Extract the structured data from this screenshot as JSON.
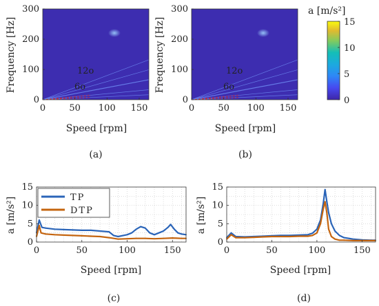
{
  "chart_data": [
    {
      "id": "a",
      "type": "heatmap",
      "panel_label": "(a)",
      "xlabel": "Speed [rpm]",
      "ylabel": "Frequency [Hz]",
      "xlim": [
        0,
        165
      ],
      "ylim": [
        0,
        300
      ],
      "xticks": [
        "0",
        "50",
        "100",
        "150"
      ],
      "yticks": [
        "0",
        "100",
        "200",
        "300"
      ],
      "annotations": [
        "12o",
        "6o"
      ],
      "order_lines": [
        6,
        12,
        24,
        36,
        48
      ],
      "colormap": "parula"
    },
    {
      "id": "b",
      "type": "heatmap",
      "panel_label": "(b)",
      "xlabel": "Speed [rpm]",
      "ylabel": "Frequency [Hz]",
      "xlim": [
        0,
        165
      ],
      "ylim": [
        0,
        300
      ],
      "xticks": [
        "0",
        "50",
        "100",
        "150"
      ],
      "yticks": [
        "0",
        "100",
        "200",
        "300"
      ],
      "annotations": [
        "12o",
        "6o"
      ],
      "order_lines": [
        6,
        12,
        24,
        36,
        48
      ],
      "colormap": "parula"
    },
    {
      "id": "colorbar",
      "type": "colorbar",
      "label": "a [m/s²]",
      "range": [
        0,
        15
      ],
      "ticks": [
        "0",
        "5",
        "10",
        "15"
      ]
    },
    {
      "id": "c",
      "type": "line",
      "panel_label": "(c)",
      "xlabel": "Speed [rpm]",
      "ylabel": "a [m/s²]",
      "xlim": [
        0,
        165
      ],
      "ylim": [
        0,
        15
      ],
      "xticks": [
        "0",
        "50",
        "100",
        "150"
      ],
      "yticks": [
        "0",
        "5",
        "10",
        "15"
      ],
      "grid": true,
      "legend_position": "top-left",
      "series": [
        {
          "name": "TP",
          "color": "#2a64b8",
          "x": [
            0,
            3,
            6,
            10,
            20,
            30,
            40,
            50,
            60,
            70,
            80,
            85,
            90,
            100,
            105,
            110,
            115,
            120,
            125,
            130,
            135,
            140,
            145,
            148,
            152,
            156,
            160,
            165
          ],
          "y": [
            2.5,
            6.0,
            4.0,
            3.8,
            3.5,
            3.4,
            3.3,
            3.2,
            3.2,
            3.0,
            2.8,
            1.8,
            1.5,
            2.0,
            2.5,
            3.5,
            4.2,
            3.8,
            2.5,
            2.0,
            2.5,
            3.0,
            4.0,
            4.8,
            3.5,
            2.5,
            2.2,
            2.0
          ]
        },
        {
          "name": "DTP",
          "color": "#c4640e",
          "x": [
            0,
            3,
            5,
            10,
            20,
            30,
            40,
            50,
            60,
            70,
            80,
            90,
            100,
            110,
            120,
            130,
            140,
            150,
            160,
            165
          ],
          "y": [
            1.5,
            4.5,
            2.5,
            2.2,
            2.0,
            1.9,
            1.8,
            1.7,
            1.6,
            1.5,
            1.2,
            0.8,
            0.9,
            1.0,
            1.0,
            0.9,
            1.0,
            1.1,
            1.0,
            1.0
          ]
        }
      ]
    },
    {
      "id": "d",
      "type": "line",
      "panel_label": "(d)",
      "xlabel": "Speed [rpm]",
      "ylabel": "a [m/s²]",
      "xlim": [
        0,
        165
      ],
      "ylim": [
        0,
        15
      ],
      "xticks": [
        "0",
        "50",
        "100",
        "150"
      ],
      "yticks": [
        "0",
        "5",
        "10",
        "15"
      ],
      "grid": true,
      "series": [
        {
          "name": "TP",
          "color": "#2a64b8",
          "x": [
            0,
            5,
            10,
            20,
            30,
            40,
            50,
            60,
            70,
            80,
            90,
            95,
            100,
            104,
            107,
            109,
            111,
            113,
            116,
            120,
            125,
            130,
            140,
            150,
            160,
            165
          ],
          "y": [
            1.2,
            2.5,
            1.5,
            1.4,
            1.5,
            1.6,
            1.7,
            1.8,
            1.8,
            1.9,
            2.0,
            2.4,
            3.5,
            6.0,
            10.5,
            14.3,
            11.0,
            8.0,
            5.0,
            3.0,
            1.8,
            1.2,
            0.8,
            0.6,
            0.5,
            0.5
          ]
        },
        {
          "name": "DTP",
          "color": "#c4640e",
          "x": [
            0,
            5,
            10,
            20,
            30,
            40,
            50,
            60,
            70,
            80,
            90,
            95,
            100,
            104,
            107,
            109,
            111,
            113,
            116,
            120,
            125,
            130,
            140,
            150,
            160,
            165
          ],
          "y": [
            0.8,
            2.0,
            1.2,
            1.2,
            1.3,
            1.4,
            1.5,
            1.5,
            1.5,
            1.6,
            1.6,
            1.8,
            2.5,
            5.0,
            9.0,
            11.0,
            8.0,
            3.5,
            1.5,
            0.8,
            0.5,
            0.5,
            0.4,
            0.4,
            0.4,
            0.4
          ]
        }
      ]
    }
  ]
}
